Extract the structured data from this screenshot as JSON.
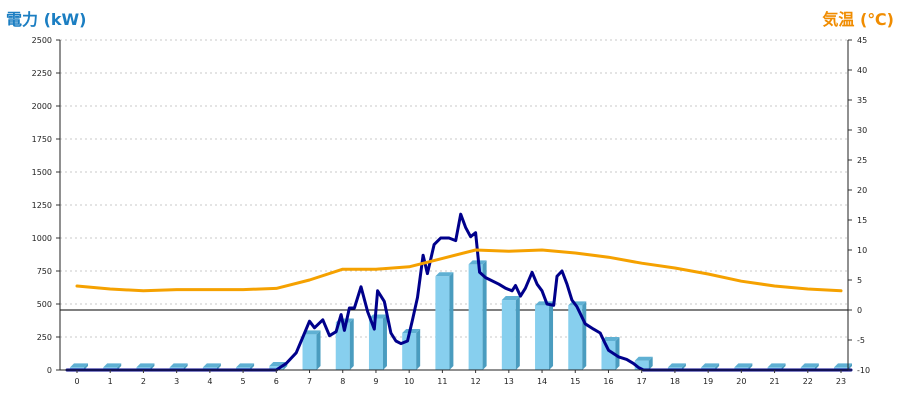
{
  "chart_data": {
    "type": "bar",
    "left_axis_title": "電力 (kW)",
    "right_axis_title": "気温 (℃)",
    "categories": [
      "0",
      "1",
      "2",
      "3",
      "4",
      "5",
      "6",
      "7",
      "8",
      "9",
      "10",
      "11",
      "12",
      "13",
      "14",
      "15",
      "16",
      "17",
      "18",
      "19",
      "20",
      "21",
      "22",
      "23"
    ],
    "y_left": {
      "min": 0,
      "max": 2500,
      "ticks": [
        0,
        250,
        500,
        750,
        1000,
        1250,
        1500,
        1750,
        2000,
        2250,
        2500
      ]
    },
    "y_right": {
      "min": -10,
      "max": 45,
      "ticks": [
        -10,
        -5,
        0,
        5,
        10,
        15,
        20,
        25,
        30,
        35,
        40,
        45
      ]
    },
    "grid": true,
    "series": [
      {
        "kind": "bar",
        "axis": "left",
        "color": "#87cfee",
        "values": [
          20,
          20,
          20,
          20,
          20,
          20,
          30,
          270,
          360,
          390,
          280,
          710,
          800,
          530,
          490,
          490,
          220,
          70,
          20,
          20,
          20,
          20,
          20,
          20
        ]
      },
      {
        "kind": "line",
        "axis": "left",
        "color": "#00008b",
        "points": [
          [
            -0.3,
            0
          ],
          [
            6.0,
            0
          ],
          [
            6.3,
            50
          ],
          [
            6.6,
            130
          ],
          [
            6.8,
            250
          ],
          [
            7.0,
            370
          ],
          [
            7.15,
            320
          ],
          [
            7.4,
            380
          ],
          [
            7.6,
            260
          ],
          [
            7.8,
            290
          ],
          [
            7.95,
            420
          ],
          [
            8.05,
            300
          ],
          [
            8.2,
            470
          ],
          [
            8.35,
            470
          ],
          [
            8.55,
            630
          ],
          [
            8.75,
            440
          ],
          [
            8.95,
            310
          ],
          [
            9.05,
            600
          ],
          [
            9.25,
            520
          ],
          [
            9.45,
            280
          ],
          [
            9.6,
            220
          ],
          [
            9.75,
            200
          ],
          [
            9.95,
            220
          ],
          [
            10.1,
            380
          ],
          [
            10.25,
            550
          ],
          [
            10.42,
            870
          ],
          [
            10.55,
            730
          ],
          [
            10.75,
            950
          ],
          [
            10.95,
            1000
          ],
          [
            11.2,
            1000
          ],
          [
            11.4,
            980
          ],
          [
            11.55,
            1180
          ],
          [
            11.7,
            1080
          ],
          [
            11.85,
            1010
          ],
          [
            12.0,
            1040
          ],
          [
            12.12,
            740
          ],
          [
            12.3,
            700
          ],
          [
            12.7,
            650
          ],
          [
            12.9,
            620
          ],
          [
            13.1,
            600
          ],
          [
            13.2,
            640
          ],
          [
            13.35,
            560
          ],
          [
            13.5,
            620
          ],
          [
            13.7,
            740
          ],
          [
            13.85,
            650
          ],
          [
            14.0,
            600
          ],
          [
            14.15,
            500
          ],
          [
            14.35,
            490
          ],
          [
            14.45,
            710
          ],
          [
            14.6,
            750
          ],
          [
            14.75,
            650
          ],
          [
            14.9,
            530
          ],
          [
            15.05,
            480
          ],
          [
            15.3,
            350
          ],
          [
            15.55,
            310
          ],
          [
            15.75,
            280
          ],
          [
            15.9,
            200
          ],
          [
            16.0,
            150
          ],
          [
            16.3,
            100
          ],
          [
            16.55,
            80
          ],
          [
            16.75,
            50
          ],
          [
            16.9,
            20
          ],
          [
            17.05,
            0
          ],
          [
            23.3,
            0
          ]
        ]
      },
      {
        "kind": "line",
        "axis": "right",
        "color": "#f5a100",
        "points": [
          [
            0,
            4
          ],
          [
            1,
            3.5
          ],
          [
            2,
            3.2
          ],
          [
            3,
            3.4
          ],
          [
            4,
            3.4
          ],
          [
            5,
            3.4
          ],
          [
            6,
            3.6
          ],
          [
            7,
            5.0
          ],
          [
            8,
            6.8
          ],
          [
            9,
            6.8
          ],
          [
            10,
            7.2
          ],
          [
            11,
            8.6
          ],
          [
            12,
            10.0
          ],
          [
            13,
            9.8
          ],
          [
            14,
            10.0
          ],
          [
            15,
            9.5
          ],
          [
            16,
            8.8
          ],
          [
            17,
            7.8
          ],
          [
            18,
            7.0
          ],
          [
            19,
            6.0
          ],
          [
            20,
            4.8
          ],
          [
            21,
            4.0
          ],
          [
            22,
            3.5
          ],
          [
            23,
            3.2
          ]
        ]
      }
    ]
  }
}
